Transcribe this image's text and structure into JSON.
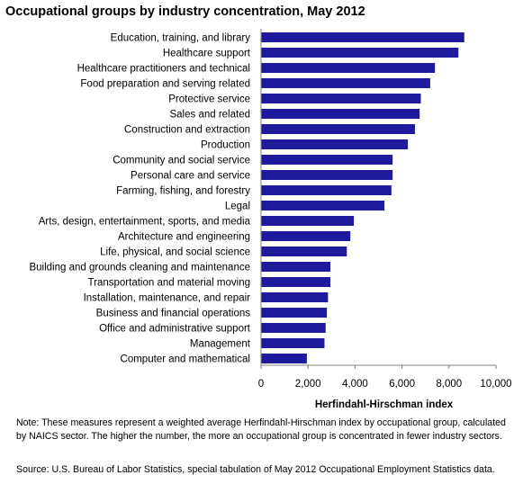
{
  "chart_data": {
    "type": "bar",
    "orientation": "horizontal",
    "title": "Occupational groups by industry concentration, May 2012",
    "xlabel": "Herfindahl-Hirschman  index",
    "ylabel": "",
    "xlim": [
      0,
      10000
    ],
    "x_ticks": [
      0,
      2000,
      4000,
      6000,
      8000,
      10000
    ],
    "x_tick_labels": [
      "0",
      "2,000",
      "4,000",
      "6,000",
      "8,000",
      "10,000"
    ],
    "grid": false,
    "legend": "none",
    "bar_color": "#1f1a9c",
    "categories": [
      "Education, training, and library",
      "Healthcare support",
      "Healthcare practitioners and technical",
      "Food preparation and serving related",
      "Protective service",
      "Sales and related",
      "Construction and extraction",
      "Production",
      "Community and social service",
      "Personal care and service",
      "Farming, fishing, and forestry",
      "Legal",
      "Arts, design, entertainment, sports, and media",
      "Architecture and engineering",
      "Life, physical, and social science",
      "Building and grounds cleaning and maintenance",
      "Transportation and material moving",
      "Installation, maintenance, and repair",
      "Business and financial operations",
      "Office and administrative support",
      "Management",
      "Computer and mathematical"
    ],
    "values": [
      8650,
      8400,
      7400,
      7200,
      6800,
      6750,
      6550,
      6250,
      5600,
      5600,
      5550,
      5250,
      3950,
      3800,
      3650,
      2950,
      2950,
      2850,
      2800,
      2750,
      2700,
      1950
    ]
  },
  "note": "Note: These measures represent a weighted average Herfindahl-Hirschman index by occupational group, calculated by NAICS sector. The higher the number, the more an occupational group is concentrated in fewer industry sectors.",
  "source": "Source: U.S. Bureau of Labor Statistics, special tabulation of May 2012 Occupational Employment Statistics data."
}
